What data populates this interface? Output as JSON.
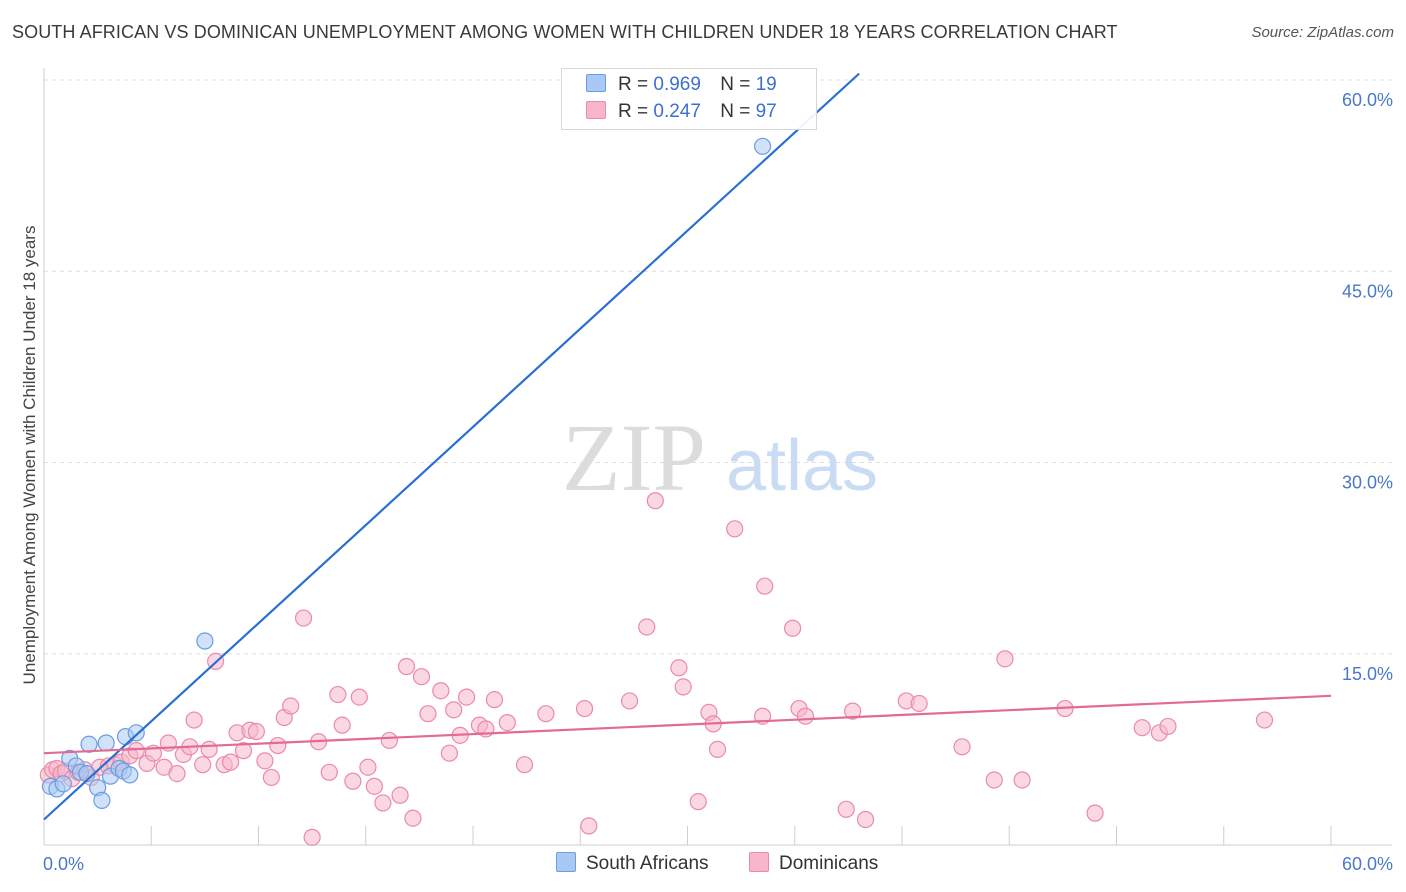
{
  "title": "SOUTH AFRICAN VS DOMINICAN UNEMPLOYMENT AMONG WOMEN WITH CHILDREN UNDER 18 YEARS CORRELATION CHART",
  "source": "Source: ZipAtlas.com",
  "watermark": {
    "zip": "ZIP",
    "atlas": "atlas"
  },
  "legend": {
    "r_label": "R =",
    "n_label": "N =",
    "rows": [
      {
        "r": "0.969",
        "n": "19"
      },
      {
        "r": "0.247",
        "n": "97"
      }
    ]
  },
  "colors": {
    "south_africans_fill": "#a9c8f3",
    "south_africans_stroke": "#6a9ee0",
    "south_africans_line": "#2a6fd4",
    "dominicans_fill": "#f7b6cb",
    "dominicans_stroke": "#ea8aaa",
    "dominicans_line": "#e36a94",
    "tick_text": "#4a78c8"
  },
  "chart_data": {
    "type": "scatter",
    "title": "SOUTH AFRICAN VS DOMINICAN UNEMPLOYMENT AMONG WOMEN WITH CHILDREN UNDER 18 YEARS CORRELATION CHART",
    "xlabel": "",
    "ylabel": "Unemployment Among Women with Children Under 18 years",
    "xlim": [
      0,
      60
    ],
    "ylim": [
      0,
      60
    ],
    "x_tick_labels": [
      "0.0%",
      "60.0%"
    ],
    "y_ticks": [
      {
        "value": 60,
        "label": "60.0%"
      },
      {
        "value": 45,
        "label": "45.0%"
      },
      {
        "value": 30,
        "label": "30.0%"
      },
      {
        "value": 15,
        "label": "15.0%"
      }
    ],
    "series": [
      {
        "name": "South Africans",
        "r": 0.969,
        "n": 19,
        "trend": {
          "x": [
            0,
            38
          ],
          "y": [
            2.0,
            60.5
          ]
        },
        "points": [
          [
            0.3,
            4.6
          ],
          [
            0.6,
            4.4
          ],
          [
            0.9,
            4.8
          ],
          [
            1.2,
            6.8
          ],
          [
            1.5,
            6.2
          ],
          [
            1.7,
            5.7
          ],
          [
            2.0,
            5.6
          ],
          [
            2.1,
            7.9
          ],
          [
            2.5,
            4.5
          ],
          [
            2.7,
            3.5
          ],
          [
            2.9,
            8.0
          ],
          [
            3.1,
            5.4
          ],
          [
            3.5,
            6.0
          ],
          [
            3.7,
            5.8
          ],
          [
            3.8,
            8.5
          ],
          [
            4.0,
            5.5
          ],
          [
            4.3,
            8.8
          ],
          [
            7.5,
            16.0
          ],
          [
            33.5,
            54.8
          ]
        ]
      },
      {
        "name": "Dominicans",
        "r": 0.247,
        "n": 97,
        "trend": {
          "x": [
            0,
            60
          ],
          "y": [
            7.2,
            11.7
          ]
        },
        "points": [
          [
            0.2,
            5.5
          ],
          [
            0.4,
            5.9
          ],
          [
            0.6,
            6.0
          ],
          [
            0.8,
            5.6
          ],
          [
            1.0,
            5.8
          ],
          [
            1.3,
            5.2
          ],
          [
            1.6,
            5.7
          ],
          [
            1.9,
            5.9
          ],
          [
            2.2,
            5.3
          ],
          [
            2.6,
            6.1
          ],
          [
            3.0,
            6.2
          ],
          [
            3.3,
            6.3
          ],
          [
            3.6,
            6.5
          ],
          [
            4.0,
            7.0
          ],
          [
            4.3,
            7.4
          ],
          [
            4.8,
            6.4
          ],
          [
            5.1,
            7.2
          ],
          [
            5.6,
            6.1
          ],
          [
            5.8,
            8.0
          ],
          [
            6.2,
            5.6
          ],
          [
            6.5,
            7.1
          ],
          [
            6.8,
            7.7
          ],
          [
            7.0,
            9.8
          ],
          [
            7.4,
            6.3
          ],
          [
            7.7,
            7.5
          ],
          [
            8.0,
            14.4
          ],
          [
            8.4,
            6.3
          ],
          [
            8.7,
            6.5
          ],
          [
            9.0,
            8.8
          ],
          [
            9.3,
            7.4
          ],
          [
            9.6,
            9.0
          ],
          [
            9.9,
            8.9
          ],
          [
            10.3,
            6.6
          ],
          [
            10.6,
            5.3
          ],
          [
            10.9,
            7.8
          ],
          [
            11.2,
            10.0
          ],
          [
            11.5,
            10.9
          ],
          [
            12.1,
            17.8
          ],
          [
            12.5,
            0.6
          ],
          [
            12.8,
            8.1
          ],
          [
            13.3,
            5.7
          ],
          [
            13.7,
            11.8
          ],
          [
            13.9,
            9.4
          ],
          [
            14.4,
            5.0
          ],
          [
            14.7,
            11.6
          ],
          [
            15.1,
            6.1
          ],
          [
            15.4,
            4.6
          ],
          [
            15.8,
            3.3
          ],
          [
            16.1,
            8.2
          ],
          [
            16.6,
            3.9
          ],
          [
            16.9,
            14.0
          ],
          [
            17.2,
            2.1
          ],
          [
            17.6,
            13.2
          ],
          [
            17.9,
            10.3
          ],
          [
            18.5,
            12.1
          ],
          [
            18.9,
            7.2
          ],
          [
            19.1,
            10.6
          ],
          [
            19.4,
            8.6
          ],
          [
            19.7,
            11.6
          ],
          [
            20.3,
            9.4
          ],
          [
            20.6,
            9.1
          ],
          [
            21.0,
            11.4
          ],
          [
            21.6,
            9.6
          ],
          [
            22.4,
            6.3
          ],
          [
            23.4,
            10.3
          ],
          [
            25.2,
            10.7
          ],
          [
            25.4,
            1.5
          ],
          [
            27.3,
            11.3
          ],
          [
            28.1,
            17.1
          ],
          [
            28.5,
            27.0
          ],
          [
            29.6,
            13.9
          ],
          [
            29.8,
            12.4
          ],
          [
            30.5,
            3.4
          ],
          [
            31.0,
            10.4
          ],
          [
            31.2,
            9.5
          ],
          [
            31.4,
            7.5
          ],
          [
            32.2,
            24.8
          ],
          [
            33.6,
            20.3
          ],
          [
            33.5,
            10.1
          ],
          [
            34.9,
            17.0
          ],
          [
            35.2,
            10.7
          ],
          [
            35.5,
            10.1
          ],
          [
            37.4,
            2.8
          ],
          [
            37.7,
            10.5
          ],
          [
            38.3,
            2.0
          ],
          [
            40.2,
            11.3
          ],
          [
            40.8,
            11.1
          ],
          [
            42.8,
            7.7
          ],
          [
            44.3,
            5.1
          ],
          [
            44.8,
            14.6
          ],
          [
            45.6,
            5.1
          ],
          [
            47.6,
            10.7
          ],
          [
            49.0,
            2.5
          ],
          [
            51.2,
            9.2
          ],
          [
            52.0,
            8.8
          ],
          [
            52.4,
            9.3
          ],
          [
            56.9,
            9.8
          ]
        ]
      }
    ]
  },
  "bottom_legend": [
    "South Africans",
    "Dominicans"
  ]
}
